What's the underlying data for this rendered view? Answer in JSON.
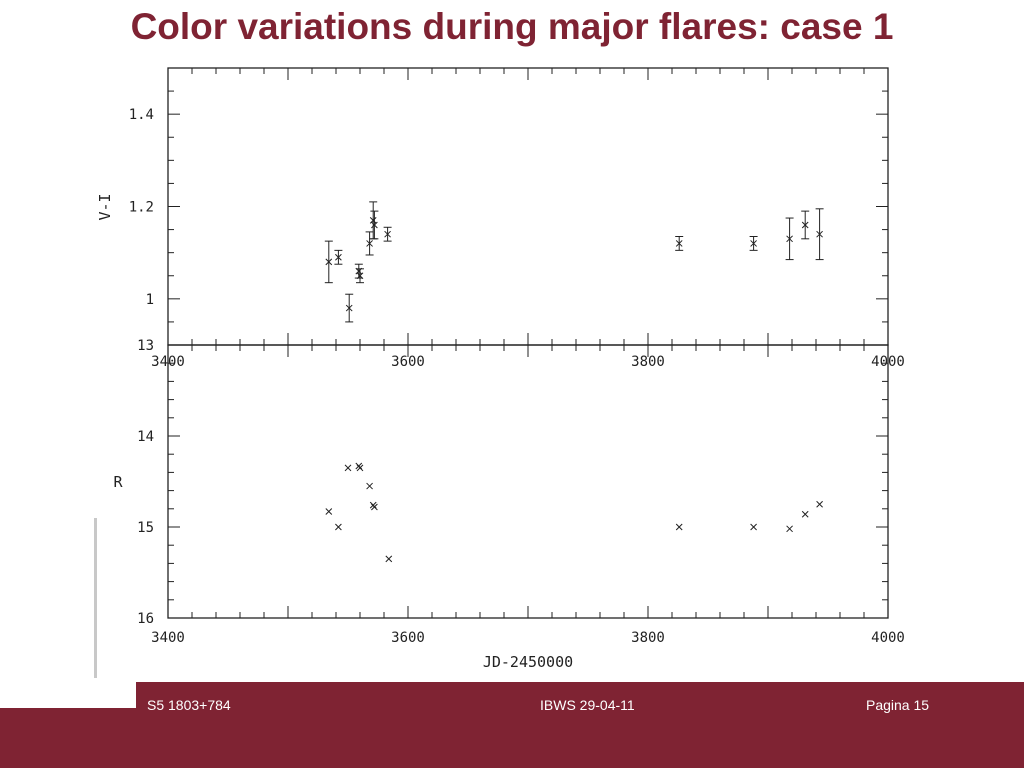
{
  "slide": {
    "title": "Color variations during major flares: case 1",
    "footer_left": "S5 1803+784",
    "footer_mid": "IBWS 29-04-11",
    "footer_right": "Pagina 15"
  },
  "colors": {
    "brand": "#7f2333",
    "ink": "#222222"
  },
  "chart_data": [
    {
      "type": "scatter",
      "ylabel": "V-I",
      "xlabel": "",
      "xlim": [
        3400,
        4000
      ],
      "ylim": [
        0.9,
        1.5
      ],
      "x_ticks": [
        "3400",
        "3600",
        "3800",
        "4000"
      ],
      "y_ticks": [
        "1",
        "1.2",
        "1.4"
      ],
      "error_bars": true,
      "points": [
        {
          "x": 3534,
          "y": 1.08,
          "err": 0.045
        },
        {
          "x": 3542,
          "y": 1.09,
          "err": 0.015
        },
        {
          "x": 3551,
          "y": 0.98,
          "err": 0.03
        },
        {
          "x": 3559,
          "y": 1.06,
          "err": 0.015
        },
        {
          "x": 3560,
          "y": 1.05,
          "err": 0.015
        },
        {
          "x": 3568,
          "y": 1.12,
          "err": 0.025
        },
        {
          "x": 3571,
          "y": 1.17,
          "err": 0.04
        },
        {
          "x": 3572,
          "y": 1.16,
          "err": 0.03
        },
        {
          "x": 3583,
          "y": 1.14,
          "err": 0.015
        },
        {
          "x": 3826,
          "y": 1.12,
          "err": 0.015
        },
        {
          "x": 3888,
          "y": 1.12,
          "err": 0.015
        },
        {
          "x": 3918,
          "y": 1.13,
          "err": 0.045
        },
        {
          "x": 3931,
          "y": 1.16,
          "err": 0.03
        },
        {
          "x": 3943,
          "y": 1.14,
          "err": 0.055
        }
      ]
    },
    {
      "type": "scatter",
      "ylabel": "R",
      "xlabel": "JD-2450000",
      "xlim": [
        3400,
        4000
      ],
      "ylim": [
        16,
        13
      ],
      "x_ticks": [
        "3400",
        "3600",
        "3800",
        "4000"
      ],
      "y_ticks": [
        "13",
        "14",
        "15",
        "16"
      ],
      "error_bars": false,
      "points": [
        {
          "x": 3534,
          "y": 14.83
        },
        {
          "x": 3542,
          "y": 15.0
        },
        {
          "x": 3550,
          "y": 14.35
        },
        {
          "x": 3559,
          "y": 14.33
        },
        {
          "x": 3560,
          "y": 14.35
        },
        {
          "x": 3568,
          "y": 14.55
        },
        {
          "x": 3571,
          "y": 14.76
        },
        {
          "x": 3572,
          "y": 14.78
        },
        {
          "x": 3584,
          "y": 15.35
        },
        {
          "x": 3826,
          "y": 15.0
        },
        {
          "x": 3888,
          "y": 15.0
        },
        {
          "x": 3918,
          "y": 15.02
        },
        {
          "x": 3931,
          "y": 14.86
        },
        {
          "x": 3943,
          "y": 14.75
        }
      ]
    }
  ]
}
